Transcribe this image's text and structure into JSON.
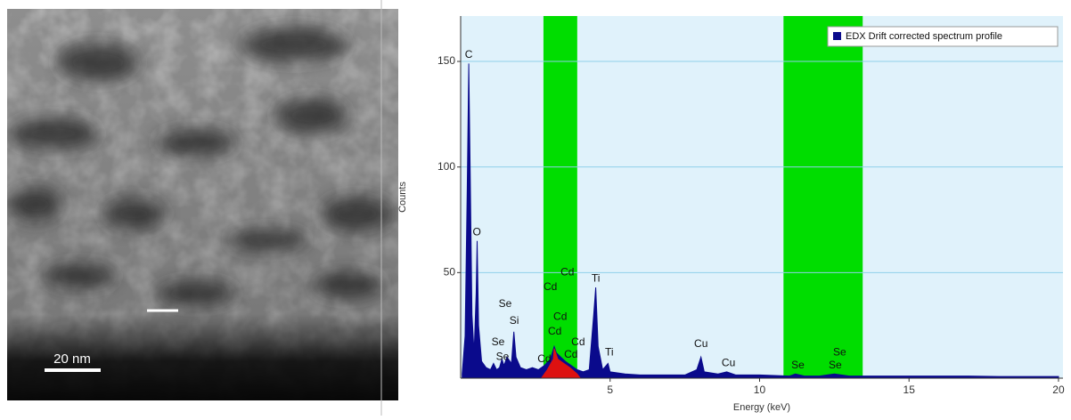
{
  "image": {
    "scale_bar_label": "20 nm"
  },
  "chart_data": {
    "type": "area",
    "x_label": "Energy (keV)",
    "y_label": "Counts",
    "xlim": [
      0,
      20.15
    ],
    "ylim": [
      0,
      171.5
    ],
    "xticks": [
      5,
      10,
      15,
      20
    ],
    "yticks": [
      50,
      100,
      150
    ],
    "grid": true,
    "legend": "top-right",
    "regions": [
      {
        "start": 2.77,
        "end": 3.9,
        "color": "#00dd00"
      },
      {
        "start": 10.8,
        "end": 13.45,
        "color": "#00dd00"
      }
    ],
    "series": [
      {
        "name": "EDX Drift corrected spectrum profile",
        "color": "#0a0a8c",
        "x": [
          0.05,
          0.15,
          0.22,
          0.27,
          0.32,
          0.38,
          0.45,
          0.52,
          0.55,
          0.6,
          0.7,
          0.85,
          1.0,
          1.1,
          1.2,
          1.3,
          1.38,
          1.45,
          1.55,
          1.7,
          1.78,
          1.85,
          2.0,
          2.2,
          2.4,
          2.6,
          2.8,
          3.0,
          3.13,
          3.2,
          3.35,
          3.5,
          3.7,
          3.9,
          4.1,
          4.3,
          4.45,
          4.52,
          4.6,
          4.75,
          4.93,
          5.0,
          5.5,
          6.0,
          6.5,
          7.0,
          7.5,
          7.9,
          8.04,
          8.15,
          8.6,
          8.9,
          9.2,
          10,
          11,
          11.2,
          11.5,
          12,
          12.5,
          13,
          14,
          15,
          16,
          17,
          18,
          19,
          20
        ],
        "values": [
          2,
          20,
          90,
          149,
          98,
          30,
          12,
          40,
          65,
          25,
          8,
          5,
          4,
          7,
          4,
          5,
          9,
          6,
          10,
          7,
          22,
          10,
          5,
          4,
          5,
          4,
          6,
          9,
          15,
          12,
          10,
          8,
          6,
          4,
          3,
          4,
          30,
          43,
          15,
          4,
          7,
          3,
          2,
          1.5,
          1.5,
          1.5,
          1.5,
          4,
          10,
          3,
          2,
          3,
          1.5,
          1.5,
          1,
          2,
          1,
          1,
          2,
          1,
          1,
          1,
          1,
          1,
          0.8,
          0.8,
          0.8
        ]
      },
      {
        "color": "#dd1111",
        "x": [
          2.7,
          2.9,
          3.1,
          3.13,
          3.25,
          3.45,
          3.65,
          3.9,
          4.0
        ],
        "values": [
          0,
          4,
          9,
          14,
          9,
          7,
          5,
          2,
          0
        ]
      }
    ],
    "annotations": [
      {
        "text": "C",
        "x": 0.27,
        "y": 153
      },
      {
        "text": "O",
        "x": 0.54,
        "y": 69
      },
      {
        "text": "Se",
        "x": 1.49,
        "y": 35
      },
      {
        "text": "Si",
        "x": 1.79,
        "y": 27
      },
      {
        "text": "Se",
        "x": 1.25,
        "y": 17
      },
      {
        "text": "Se",
        "x": 1.4,
        "y": 10
      },
      {
        "text": "Cd",
        "x": 3.0,
        "y": 43
      },
      {
        "text": "Cd",
        "x": 3.57,
        "y": 50
      },
      {
        "text": "Cd",
        "x": 3.33,
        "y": 29
      },
      {
        "text": "Cd",
        "x": 3.15,
        "y": 22
      },
      {
        "text": "Cd",
        "x": 3.93,
        "y": 17
      },
      {
        "text": "Cd",
        "x": 3.69,
        "y": 11
      },
      {
        "text": "Cd",
        "x": 2.8,
        "y": 9
      },
      {
        "text": "Ti",
        "x": 4.52,
        "y": 47
      },
      {
        "text": "Ti",
        "x": 4.97,
        "y": 12
      },
      {
        "text": "Cu",
        "x": 8.04,
        "y": 16
      },
      {
        "text": "Cu",
        "x": 8.96,
        "y": 7
      },
      {
        "text": "Se",
        "x": 11.28,
        "y": 6
      },
      {
        "text": "Se",
        "x": 12.68,
        "y": 12
      },
      {
        "text": "Se",
        "x": 12.53,
        "y": 6
      }
    ]
  }
}
